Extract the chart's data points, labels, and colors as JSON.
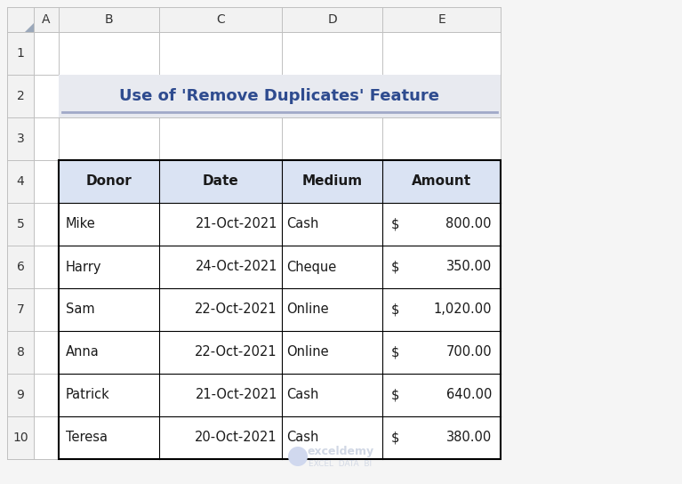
{
  "title": "Use of 'Remove Duplicates' Feature",
  "title_color": "#2E4B8F",
  "title_bg_color": "#E8EAF0",
  "title_underline_color": "#A0A8C8",
  "col_headers": [
    "Donor",
    "Date",
    "Medium",
    "Amount"
  ],
  "header_bg_color": "#DAE3F3",
  "rows": [
    [
      "Mike",
      "21-Oct-2021",
      "Cash",
      "$",
      "800.00"
    ],
    [
      "Harry",
      "24-Oct-2021",
      "Cheque",
      "$",
      "350.00"
    ],
    [
      "Sam",
      "22-Oct-2021",
      "Online",
      "$",
      "1,020.00"
    ],
    [
      "Anna",
      "22-Oct-2021",
      "Online",
      "$",
      "700.00"
    ],
    [
      "Patrick",
      "21-Oct-2021",
      "Cash",
      "$",
      "640.00"
    ],
    [
      "Teresa",
      "20-Oct-2021",
      "Cash",
      "$",
      "380.00"
    ]
  ],
  "col_letters": [
    "A",
    "B",
    "C",
    "D",
    "E"
  ],
  "row_labels": [
    "1",
    "2",
    "3",
    "4",
    "5",
    "6",
    "7",
    "8",
    "9",
    "10"
  ],
  "spreadsheet_bg": "#FFFFFF",
  "header_row_bg": "#F2F2F2",
  "grid_color": "#C0C0C0",
  "border_color": "#000000",
  "watermark_text": "exceldemy",
  "watermark_sub": "EXCEL  DATA  BI",
  "watermark_color": "#C8D0E0",
  "outer_bg_color": "#F5F5F5"
}
